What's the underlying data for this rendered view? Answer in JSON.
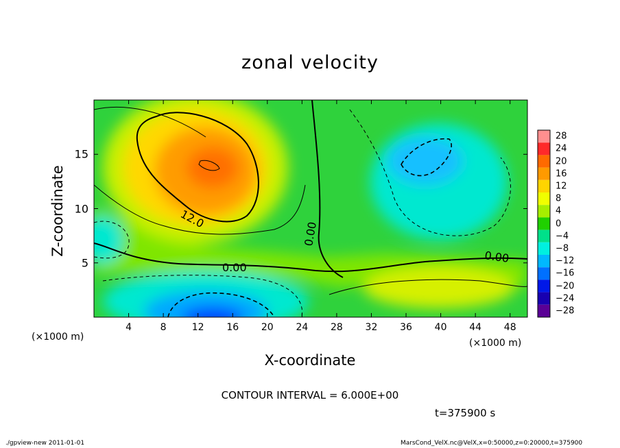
{
  "chart_data": {
    "type": "heatmap",
    "title": "zonal velocity",
    "xlabel": "X-coordinate",
    "ylabel": "Z-coordinate",
    "x_unit_label": "(×1000 m)",
    "x_ticks": [
      "4",
      "8",
      "12",
      "16",
      "20",
      "24",
      "28",
      "32",
      "36",
      "40",
      "44",
      "48"
    ],
    "y_ticks": [
      "5",
      "10",
      "15"
    ],
    "xlim": [
      0,
      50
    ],
    "ylim": [
      0,
      20
    ],
    "colorbar_labels": [
      "28",
      "24",
      "20",
      "16",
      "12",
      "8",
      "4",
      "0",
      "−4",
      "−8",
      "−12",
      "−16",
      "−20",
      "−24",
      "−28"
    ],
    "colorbar_colors": [
      "#ff8f8f",
      "#ff2a2a",
      "#ff6a00",
      "#ff9a00",
      "#ffd400",
      "#f0ff00",
      "#a6ee00",
      "#20d000",
      "#00e08a",
      "#00f0e0",
      "#00b8ff",
      "#0070ff",
      "#0018e8",
      "#1800b0",
      "#5a0096"
    ],
    "contour_labels": [
      "12.0",
      "0.00",
      "0.00",
      "0.00"
    ],
    "features": [
      {
        "x": 14,
        "z": 14,
        "value": 16
      },
      {
        "x": 14,
        "z": 1.5,
        "value": -18
      },
      {
        "x": 39,
        "z": 15,
        "value": -12
      },
      {
        "x": 38,
        "z": 2.5,
        "value": 6
      },
      {
        "x": 1.5,
        "z": 7,
        "value": -8
      }
    ],
    "contour_interval_text": "CONTOUR INTERVAL = 6.000E+00",
    "time_text": "t=375900 s"
  },
  "footer": {
    "left": "./gpview-new  2011-01-01",
    "right": "MarsCond_VelX.nc@VelX,x=0:50000,z=0:20000,t=375900"
  }
}
